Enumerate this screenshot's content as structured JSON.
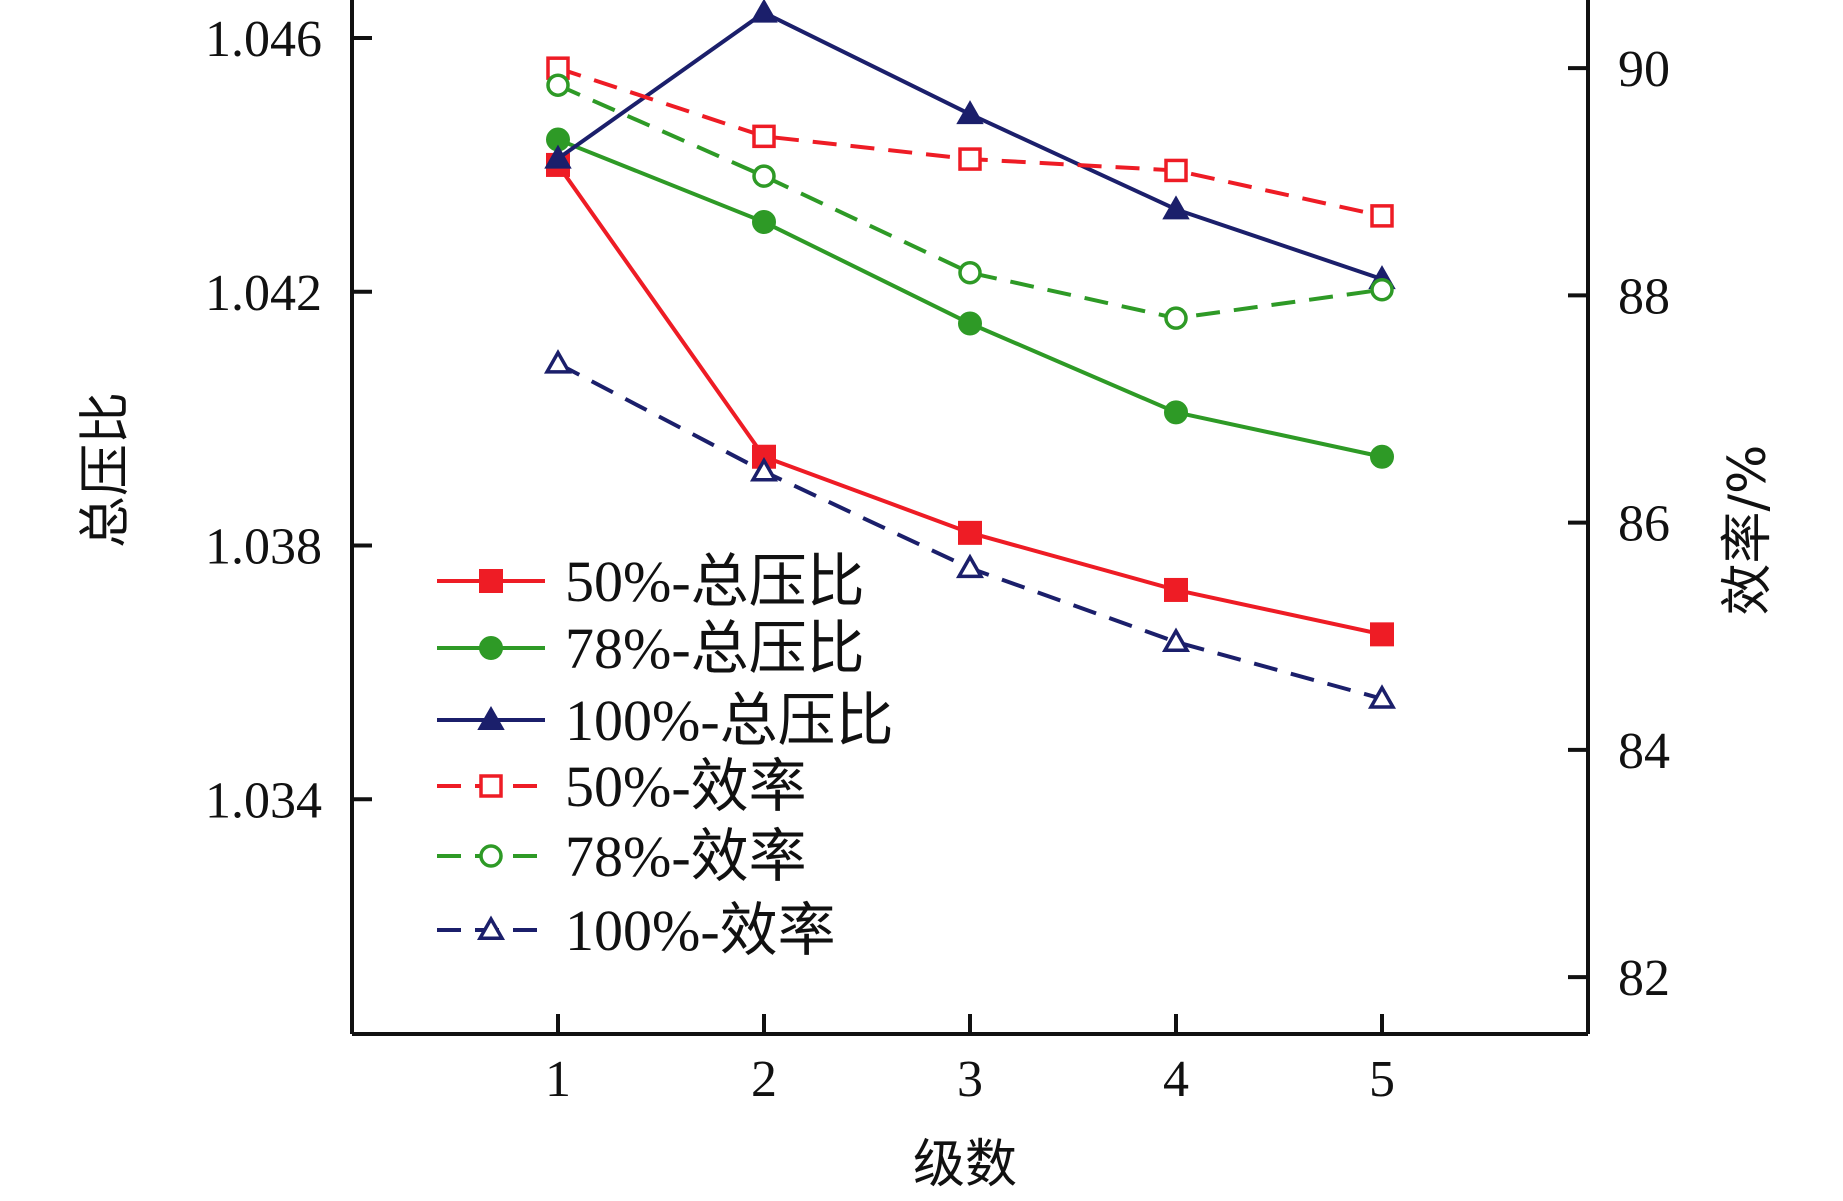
{
  "chart_data": {
    "type": "line",
    "x": [
      1,
      2,
      3,
      4,
      5
    ],
    "xlabel": "级数",
    "ylabel_left": "总压比",
    "ylabel_right": "效率/%",
    "x_ticks": [
      "1",
      "2",
      "3",
      "4",
      "5"
    ],
    "y_left_ticks": [
      "1.034",
      "1.038",
      "1.042",
      "1.046"
    ],
    "y_right_ticks": [
      "82",
      "84",
      "86",
      "88",
      "90"
    ],
    "xlim": [
      0,
      6
    ],
    "ylim_left": [
      1.0303,
      1.0466
    ],
    "ylim_right": [
      81.5,
      90.6
    ],
    "grid": false,
    "legend_position": "center-left",
    "series": [
      {
        "name": "50%-总压比",
        "axis": "left",
        "values": [
          1.044,
          1.0394,
          1.0382,
          1.0373,
          1.0366
        ],
        "color": "#ee1c25",
        "line": "solid",
        "marker": "square",
        "filled": true
      },
      {
        "name": "78%-总压比",
        "axis": "left",
        "values": [
          1.0444,
          1.0431,
          1.0415,
          1.0401,
          1.0394
        ],
        "color": "#2e9a26",
        "line": "solid",
        "marker": "circle",
        "filled": true
      },
      {
        "name": "100%-总压比",
        "axis": "left",
        "values": [
          1.0441,
          1.0464,
          1.0448,
          1.0433,
          1.0422
        ],
        "color": "#1b1f6b",
        "line": "solid",
        "marker": "triangle",
        "filled": true
      },
      {
        "name": "50%-效率",
        "axis": "right",
        "values": [
          90.0,
          89.4,
          89.2,
          89.1,
          88.7
        ],
        "color": "#ee1c25",
        "line": "dashed",
        "marker": "square",
        "filled": false
      },
      {
        "name": "78%-效率",
        "axis": "right",
        "values": [
          89.85,
          89.05,
          88.2,
          87.8,
          88.05
        ],
        "color": "#2e9a26",
        "line": "dashed",
        "marker": "circle",
        "filled": false
      },
      {
        "name": "100%-效率",
        "axis": "right",
        "values": [
          87.4,
          86.45,
          85.6,
          84.95,
          84.45
        ],
        "color": "#1b1f6b",
        "line": "dashed",
        "marker": "triangle",
        "filled": false
      }
    ]
  }
}
